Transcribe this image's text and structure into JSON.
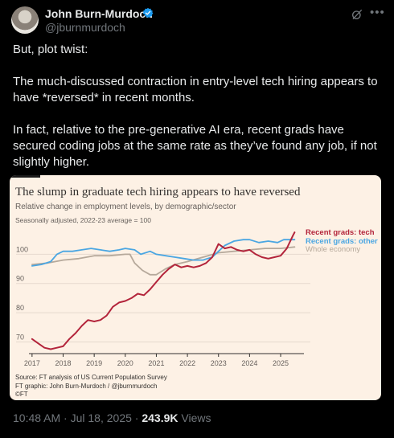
{
  "author": {
    "name": "John Burn-Murdoch",
    "handle": "@jburnmurdoch"
  },
  "tweet": {
    "paragraphs": [
      "But, plot twist:",
      "The much-discussed contraction in entry-level tech hiring appears to have *reversed* in recent months.",
      "In fact, relative to the pre-generative AI era, recent grads have secured coding jobs at the same rate as they’ve found any job, if not slightly higher."
    ]
  },
  "meta": {
    "time": "10:48 AM",
    "date": "Jul 18, 2025",
    "views": "243.9K",
    "views_label": "Views"
  },
  "icons": {
    "avatar": "avatar",
    "verified": "verified-badge-icon",
    "grok": "grok-icon",
    "more": "more-icon"
  },
  "colors": {
    "tech": "#b3243b",
    "other": "#4aa6e2",
    "economy": "#b6a99b",
    "card_bg": "#fdf1e5"
  },
  "chart_data": {
    "type": "line",
    "title": "The slump in graduate tech hiring appears to have reversed",
    "subtitle": "Relative change in employment levels, by demographic/sector",
    "note": "Seasonally adjusted, 2022-23 average = 100",
    "x_ticks": [
      "2017",
      "2018",
      "2019",
      "2020",
      "2021",
      "2022",
      "2023",
      "2024",
      "2025"
    ],
    "y_ticks": [
      100,
      90,
      80,
      70
    ],
    "xlim": [
      2016.9,
      2025.75
    ],
    "ylim": [
      66,
      110
    ],
    "source_lines": [
      "Source: FT analysis of US Current Population Survey",
      "FT graphic: John Burn-Murdoch / @jburnmurdoch",
      "©FT"
    ],
    "series": [
      {
        "name": "Recent grads: tech",
        "color": "#b3243b",
        "points": [
          [
            2017.0,
            71
          ],
          [
            2017.2,
            69.5
          ],
          [
            2017.4,
            68
          ],
          [
            2017.6,
            67.5
          ],
          [
            2017.8,
            68
          ],
          [
            2018.0,
            68.5
          ],
          [
            2018.2,
            71
          ],
          [
            2018.4,
            73
          ],
          [
            2018.6,
            75.5
          ],
          [
            2018.8,
            77.5
          ],
          [
            2019.0,
            77
          ],
          [
            2019.2,
            77.5
          ],
          [
            2019.4,
            79
          ],
          [
            2019.6,
            82
          ],
          [
            2019.8,
            83.5
          ],
          [
            2020.0,
            84
          ],
          [
            2020.2,
            85
          ],
          [
            2020.4,
            86.5
          ],
          [
            2020.6,
            86
          ],
          [
            2020.8,
            88
          ],
          [
            2021.0,
            90.5
          ],
          [
            2021.2,
            93
          ],
          [
            2021.4,
            95
          ],
          [
            2021.6,
            96.5
          ],
          [
            2021.8,
            95.5
          ],
          [
            2022.0,
            96
          ],
          [
            2022.2,
            95.5
          ],
          [
            2022.4,
            96
          ],
          [
            2022.6,
            97
          ],
          [
            2022.8,
            99
          ],
          [
            2023.0,
            103.5
          ],
          [
            2023.2,
            102
          ],
          [
            2023.4,
            102.5
          ],
          [
            2023.6,
            101.5
          ],
          [
            2023.8,
            101
          ],
          [
            2024.0,
            101.5
          ],
          [
            2024.2,
            100
          ],
          [
            2024.4,
            99
          ],
          [
            2024.6,
            98.5
          ],
          [
            2024.8,
            99
          ],
          [
            2025.0,
            99.5
          ],
          [
            2025.2,
            102
          ],
          [
            2025.4,
            106.5
          ],
          [
            2025.45,
            107.5
          ]
        ]
      },
      {
        "name": "Recent grads: other",
        "color": "#4aa6e2",
        "points": [
          [
            2017.0,
            96
          ],
          [
            2017.3,
            96.5
          ],
          [
            2017.6,
            97.5
          ],
          [
            2017.8,
            100
          ],
          [
            2018.0,
            101
          ],
          [
            2018.3,
            101
          ],
          [
            2018.6,
            101.5
          ],
          [
            2018.9,
            102
          ],
          [
            2019.2,
            101.5
          ],
          [
            2019.5,
            101
          ],
          [
            2019.8,
            101.5
          ],
          [
            2020.0,
            102
          ],
          [
            2020.3,
            101.5
          ],
          [
            2020.5,
            100
          ],
          [
            2020.8,
            101
          ],
          [
            2021.0,
            100
          ],
          [
            2021.3,
            99.5
          ],
          [
            2021.6,
            99
          ],
          [
            2021.9,
            98.5
          ],
          [
            2022.2,
            98
          ],
          [
            2022.5,
            98
          ],
          [
            2022.8,
            99
          ],
          [
            2023.0,
            101
          ],
          [
            2023.2,
            103
          ],
          [
            2023.5,
            104.5
          ],
          [
            2023.8,
            105
          ],
          [
            2024.0,
            105
          ],
          [
            2024.3,
            104
          ],
          [
            2024.6,
            104.5
          ],
          [
            2024.9,
            104
          ],
          [
            2025.1,
            105
          ],
          [
            2025.3,
            105
          ],
          [
            2025.45,
            105
          ]
        ]
      },
      {
        "name": "Whole economy",
        "color": "#b6a99b",
        "points": [
          [
            2017.0,
            96.5
          ],
          [
            2017.5,
            97
          ],
          [
            2018.0,
            98
          ],
          [
            2018.5,
            98.5
          ],
          [
            2019.0,
            99.5
          ],
          [
            2019.5,
            99.5
          ],
          [
            2020.0,
            100
          ],
          [
            2020.15,
            100
          ],
          [
            2020.3,
            97
          ],
          [
            2020.55,
            94.5
          ],
          [
            2020.8,
            93
          ],
          [
            2021.0,
            93
          ],
          [
            2021.3,
            95
          ],
          [
            2021.6,
            96.5
          ],
          [
            2022.0,
            97.5
          ],
          [
            2022.5,
            99
          ],
          [
            2023.0,
            100.5
          ],
          [
            2023.5,
            101
          ],
          [
            2024.0,
            101.5
          ],
          [
            2024.5,
            102
          ],
          [
            2025.0,
            102
          ],
          [
            2025.45,
            102.5
          ]
        ]
      }
    ]
  }
}
